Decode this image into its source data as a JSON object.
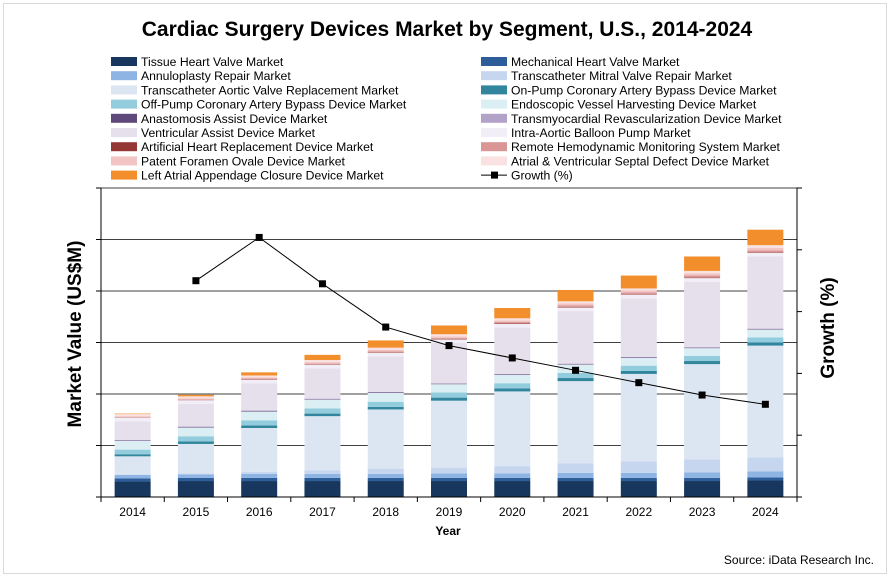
{
  "chart_data": {
    "type": "bar",
    "stacked": true,
    "title": "Cardiac Surgery Devices Market by Segment, U.S., 2014-2024",
    "xlabel": "Year",
    "ylabel": "Market Value (US$M)",
    "y2label": "Growth (%)",
    "source": "Source: iData Research Inc.",
    "categories": [
      "2014",
      "2015",
      "2016",
      "2017",
      "2018",
      "2019",
      "2020",
      "2021",
      "2022",
      "2023",
      "2024"
    ],
    "ylim": [
      0,
      6
    ],
    "y2lim": [
      0,
      1
    ],
    "grid": true,
    "legend_position": "top",
    "series": [
      {
        "name": "Tissue Heart Valve Market",
        "color": "#17375e",
        "values": [
          0.3,
          0.31,
          0.31,
          0.31,
          0.31,
          0.31,
          0.31,
          0.31,
          0.31,
          0.31,
          0.32
        ]
      },
      {
        "name": "Mechanical Heart Valve Market",
        "color": "#2e5e9a",
        "values": [
          0.06,
          0.06,
          0.06,
          0.06,
          0.06,
          0.06,
          0.06,
          0.06,
          0.06,
          0.06,
          0.06
        ]
      },
      {
        "name": "Annuloplasty Repair Market",
        "color": "#8eb4e3",
        "values": [
          0.07,
          0.07,
          0.08,
          0.08,
          0.08,
          0.09,
          0.09,
          0.1,
          0.1,
          0.11,
          0.12
        ]
      },
      {
        "name": "Transcatheter Mitral Valve Repair Market",
        "color": "#c5d6ee",
        "values": [
          0.01,
          0.02,
          0.04,
          0.07,
          0.1,
          0.11,
          0.14,
          0.18,
          0.22,
          0.25,
          0.27
        ]
      },
      {
        "name": "Transcatheter Aortic Valve Replacement Market",
        "color": "#dce6f2",
        "values": [
          0.35,
          0.57,
          0.85,
          1.05,
          1.15,
          1.3,
          1.45,
          1.6,
          1.7,
          1.85,
          2.17
        ]
      },
      {
        "name": "On-Pump Coronary Artery Bypass Device Market",
        "color": "#31859c",
        "values": [
          0.04,
          0.05,
          0.05,
          0.05,
          0.05,
          0.06,
          0.06,
          0.06,
          0.06,
          0.06,
          0.06
        ]
      },
      {
        "name": "Off-Pump Coronary Artery Bypass Device Market",
        "color": "#93cddd",
        "values": [
          0.09,
          0.1,
          0.1,
          0.1,
          0.1,
          0.1,
          0.1,
          0.1,
          0.1,
          0.1,
          0.1
        ]
      },
      {
        "name": "Endoscopic Vessel Harvesting Device Market",
        "color": "#daeef3",
        "values": [
          0.17,
          0.17,
          0.17,
          0.17,
          0.17,
          0.16,
          0.16,
          0.16,
          0.15,
          0.15,
          0.15
        ]
      },
      {
        "name": "Anastomosis Assist Device Market",
        "color": "#5f497a",
        "values": [
          0.01,
          0.01,
          0.01,
          0.01,
          0.01,
          0.01,
          0.01,
          0.01,
          0.01,
          0.01,
          0.01
        ]
      },
      {
        "name": "Transmyocardial Revascularization Device Market",
        "color": "#b3a2c7",
        "values": [
          0.01,
          0.01,
          0.01,
          0.01,
          0.01,
          0.01,
          0.01,
          0.01,
          0.01,
          0.01,
          0.01
        ]
      },
      {
        "name": "Ventricular Assist Device Market",
        "color": "#e6e0ec",
        "values": [
          0.36,
          0.44,
          0.53,
          0.59,
          0.69,
          0.78,
          0.9,
          1.02,
          1.14,
          1.27,
          1.4
        ]
      },
      {
        "name": "Intra-Aortic Balloon Pump Market",
        "color": "#f2eef7",
        "values": [
          0.07,
          0.07,
          0.07,
          0.07,
          0.07,
          0.07,
          0.07,
          0.07,
          0.07,
          0.07,
          0.07
        ]
      },
      {
        "name": "Artificial Heart Replacement Device Market",
        "color": "#953735",
        "values": [
          0.005,
          0.005,
          0.01,
          0.01,
          0.01,
          0.01,
          0.01,
          0.01,
          0.01,
          0.01,
          0.01
        ]
      },
      {
        "name": "Remote Hemodynamic Monitoring System Market",
        "color": "#d99694",
        "values": [
          0.005,
          0.01,
          0.01,
          0.01,
          0.02,
          0.02,
          0.03,
          0.03,
          0.03,
          0.04,
          0.04
        ]
      },
      {
        "name": "Patent Foramen Ovale Device Market",
        "color": "#f2c4c3",
        "values": [
          0.02,
          0.02,
          0.02,
          0.03,
          0.03,
          0.03,
          0.03,
          0.04,
          0.04,
          0.04,
          0.05
        ]
      },
      {
        "name": "Atrial & Ventricular Septal Defect Device Market",
        "color": "#f9e2e1",
        "values": [
          0.04,
          0.04,
          0.04,
          0.04,
          0.04,
          0.04,
          0.04,
          0.04,
          0.04,
          0.05,
          0.05
        ]
      },
      {
        "name": "Left Atrial Appendage Closure Device Market",
        "color": "#f28e2b",
        "values": [
          0.01,
          0.03,
          0.06,
          0.1,
          0.14,
          0.17,
          0.2,
          0.22,
          0.25,
          0.28,
          0.3
        ]
      }
    ],
    "line_series": {
      "name": "Growth (%)",
      "color": "#000000",
      "marker": "square",
      "x": [
        "2015",
        "2016",
        "2017",
        "2018",
        "2019",
        "2020",
        "2021",
        "2022",
        "2023",
        "2024"
      ],
      "values": [
        0.7,
        0.84,
        0.69,
        0.55,
        0.49,
        0.45,
        0.41,
        0.37,
        0.33,
        0.3
      ]
    }
  }
}
